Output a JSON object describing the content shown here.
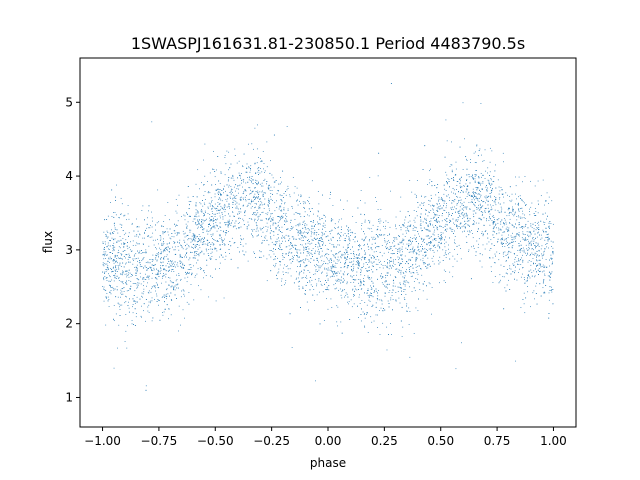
{
  "chart_data": {
    "type": "scatter",
    "title": "1SWASPJ161631.81-230850.1 Period 4483790.5s",
    "xlabel": "phase",
    "ylabel": "flux",
    "xlim": [
      -1.1,
      1.1
    ],
    "ylim": [
      0.6,
      5.6
    ],
    "xticks": [
      "−1.00",
      "−0.75",
      "−0.50",
      "−0.25",
      "0.00",
      "0.25",
      "0.50",
      "0.75",
      "1.00"
    ],
    "xtick_values": [
      -1.0,
      -0.75,
      -0.5,
      -0.25,
      0.0,
      0.25,
      0.5,
      0.75,
      1.0
    ],
    "yticks": [
      "1",
      "2",
      "3",
      "4",
      "5"
    ],
    "ytick_values": [
      1,
      2,
      3,
      4,
      5
    ],
    "grid": false,
    "marker_color": "#1f77b4",
    "series": [
      {
        "x_range": [
          -1.0,
          1.0
        ],
        "phase_flux_profile": [
          [
            -1.0,
            2.9
          ],
          [
            -0.95,
            2.85
          ],
          [
            -0.9,
            2.8
          ],
          [
            -0.85,
            2.7
          ],
          [
            -0.8,
            2.75
          ],
          [
            -0.75,
            2.8
          ],
          [
            -0.7,
            2.85
          ],
          [
            -0.65,
            2.9
          ],
          [
            -0.6,
            3.1
          ],
          [
            -0.55,
            3.3
          ],
          [
            -0.5,
            3.4
          ],
          [
            -0.45,
            3.5
          ],
          [
            -0.4,
            3.6
          ],
          [
            -0.35,
            3.7
          ],
          [
            -0.3,
            3.6
          ],
          [
            -0.25,
            3.4
          ],
          [
            -0.2,
            3.2
          ],
          [
            -0.15,
            3.1
          ],
          [
            -0.1,
            3.05
          ],
          [
            -0.05,
            3.0
          ],
          [
            0.0,
            2.9
          ],
          [
            0.05,
            2.85
          ],
          [
            0.1,
            2.8
          ],
          [
            0.15,
            2.7
          ],
          [
            0.2,
            2.75
          ],
          [
            0.25,
            2.8
          ],
          [
            0.3,
            2.85
          ],
          [
            0.35,
            2.9
          ],
          [
            0.4,
            3.1
          ],
          [
            0.45,
            3.3
          ],
          [
            0.5,
            3.4
          ],
          [
            0.55,
            3.5
          ],
          [
            0.6,
            3.6
          ],
          [
            0.65,
            3.7
          ],
          [
            0.7,
            3.6
          ],
          [
            0.75,
            3.4
          ],
          [
            0.8,
            3.2
          ],
          [
            0.85,
            3.1
          ],
          [
            0.9,
            3.05
          ],
          [
            0.95,
            3.0
          ],
          [
            1.0,
            2.9
          ]
        ],
        "scatter_spread": 0.35,
        "approx_points": 6000
      }
    ]
  }
}
